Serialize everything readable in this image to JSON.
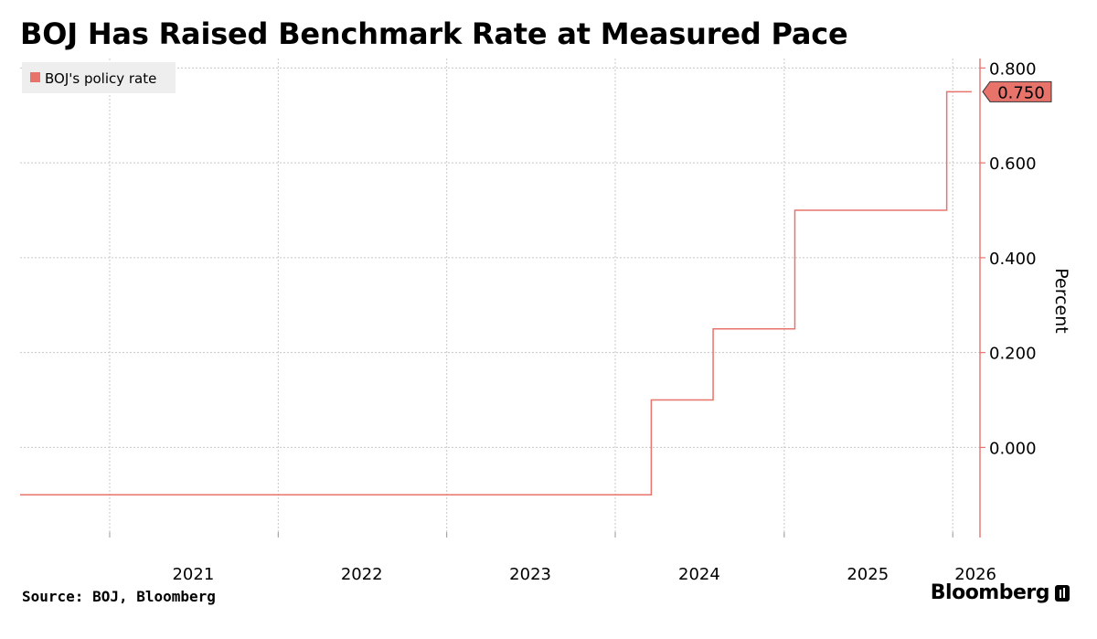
{
  "title": "BOJ Has Raised Benchmark Rate at Measured Pace",
  "source": "Source: BOJ, Bloomberg",
  "brand": "Bloomberg",
  "colors": {
    "series": "#e8736b",
    "grid": "#c8c8c8",
    "axis": "#e8736b",
    "text": "#000000"
  },
  "chart_data": {
    "type": "line",
    "step": true,
    "title": "BOJ Has Raised Benchmark Rate at Measured Pace",
    "ylabel": "Percent",
    "xlabel": "",
    "ylim": [
      -0.19,
      0.82
    ],
    "y_ticks": [
      0.0,
      0.2,
      0.4,
      0.6,
      0.8
    ],
    "y_tick_labels": [
      "0.000",
      "0.200",
      "0.400",
      "0.600",
      "0.800"
    ],
    "x_range": [
      "2020-06-21",
      "2026-03-01"
    ],
    "x_ticks": [
      "2021",
      "2022",
      "2023",
      "2024",
      "2025",
      "2026"
    ],
    "legend": "top-left",
    "grid": true,
    "last_value_label": "0.750",
    "series": [
      {
        "name": "BOJ's policy rate",
        "x": [
          "2020-06-21",
          "2024-03-19",
          "2024-07-31",
          "2025-01-24",
          "2025-12-19",
          "2026-02-11"
        ],
        "y": [
          -0.1,
          0.1,
          0.25,
          0.5,
          0.75,
          0.75
        ]
      }
    ]
  }
}
